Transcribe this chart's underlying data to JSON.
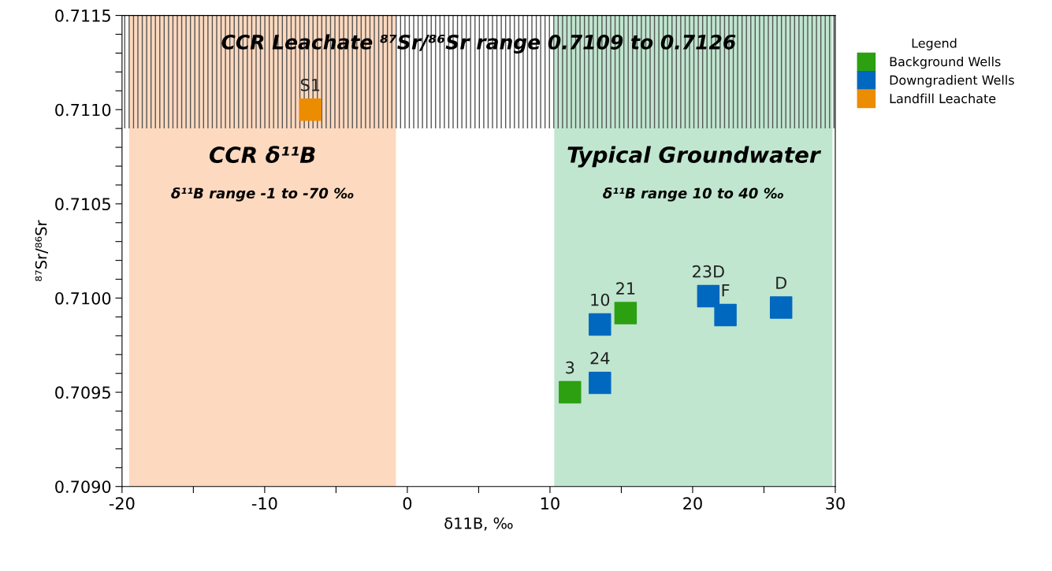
{
  "chart_data": {
    "type": "scatter",
    "xlabel": "δ11B, ‰",
    "ylabel": "⁸⁷Sr/⁸⁶Sr",
    "xlim": [
      -20,
      30
    ],
    "xticks": [
      -20,
      {
        "value": -15,
        "label": null
      },
      -10,
      {
        "value": -5,
        "label": null
      },
      0,
      {
        "value": 5,
        "label": null
      },
      10,
      {
        "value": 15,
        "label": null
      },
      20,
      {
        "value": 25,
        "label": null
      },
      30
    ],
    "ylim": [
      0.709,
      0.7115
    ],
    "yticks": [
      {
        "value": 0.709,
        "label": "0.7090"
      },
      {
        "value": 0.7091,
        "label": null
      },
      {
        "value": 0.7092,
        "label": null
      },
      {
        "value": 0.7093,
        "label": null
      },
      {
        "value": 0.7094,
        "label": null
      },
      {
        "value": 0.7095,
        "label": "0.7095"
      },
      {
        "value": 0.7096,
        "label": null
      },
      {
        "value": 0.7097,
        "label": null
      },
      {
        "value": 0.7098,
        "label": null
      },
      {
        "value": 0.7099,
        "label": null
      },
      {
        "value": 0.71,
        "label": "0.7100"
      },
      {
        "value": 0.7101,
        "label": null
      },
      {
        "value": 0.7102,
        "label": null
      },
      {
        "value": 0.7103,
        "label": null
      },
      {
        "value": 0.7104,
        "label": null
      },
      {
        "value": 0.7105,
        "label": "0.7105"
      },
      {
        "value": 0.7106,
        "label": null
      },
      {
        "value": 0.7107,
        "label": null
      },
      {
        "value": 0.7108,
        "label": null
      },
      {
        "value": 0.7109,
        "label": null
      },
      {
        "value": 0.711,
        "label": "0.7110"
      },
      {
        "value": 0.7111,
        "label": null
      },
      {
        "value": 0.7112,
        "label": null
      },
      {
        "value": 0.7113,
        "label": null
      },
      {
        "value": 0.7114,
        "label": null
      },
      {
        "value": 0.7115,
        "label": "0.7115"
      }
    ],
    "grid": false,
    "marker": "square",
    "legend": "right",
    "legend_title": "Legend",
    "series": [
      {
        "name": "Background Wells",
        "color": "#2ca011",
        "x": [
          11.4,
          15.3
        ],
        "values": [
          0.7095,
          0.70992
        ]
      },
      {
        "name": "Downgradient Wells",
        "color": "#0068be",
        "x": [
          13.5,
          13.5,
          21.1,
          22.3,
          26.2
        ],
        "values": [
          0.70955,
          0.70986,
          0.71001,
          0.70991,
          0.70995
        ]
      },
      {
        "name": "Landfill Leachate",
        "color": "#ec8c00",
        "x": [
          -6.8
        ],
        "values": [
          0.711
        ]
      }
    ],
    "bands": [
      {
        "axis": "x",
        "from": -19.5,
        "to": -0.8,
        "label": "CCR δ¹¹B",
        "color": "#fdd9bf"
      },
      {
        "axis": "x",
        "from": 10.3,
        "to": 29.8,
        "label": "Typical Groundwater",
        "color": "#c0e6cf"
      },
      {
        "axis": "y",
        "from": 0.7109,
        "to": 0.7115,
        "label": "CCR Leachate ⁸⁷Sr/⁸⁶Sr range 0.7109 to 0.7126",
        "color": "#555555"
      }
    ],
    "annotations": [
      "δ¹¹B range -1 to -70 ‰",
      "δ¹¹B range 10 to 40 ‰",
      {
        "text": "3",
        "x": 11.4,
        "y": 0.7095
      },
      {
        "text": "21",
        "x": 15.3,
        "y": 0.70992
      },
      {
        "text": "24",
        "x": 13.5,
        "y": 0.70955
      },
      {
        "text": "10",
        "x": 13.5,
        "y": 0.70986
      },
      {
        "text": "23D",
        "x": 21.1,
        "y": 0.71001
      },
      {
        "text": "F",
        "x": 22.3,
        "y": 0.70991
      },
      {
        "text": "D",
        "x": 26.2,
        "y": 0.70995
      },
      {
        "text": "S1",
        "x": -6.8,
        "y": 0.711
      }
    ]
  }
}
